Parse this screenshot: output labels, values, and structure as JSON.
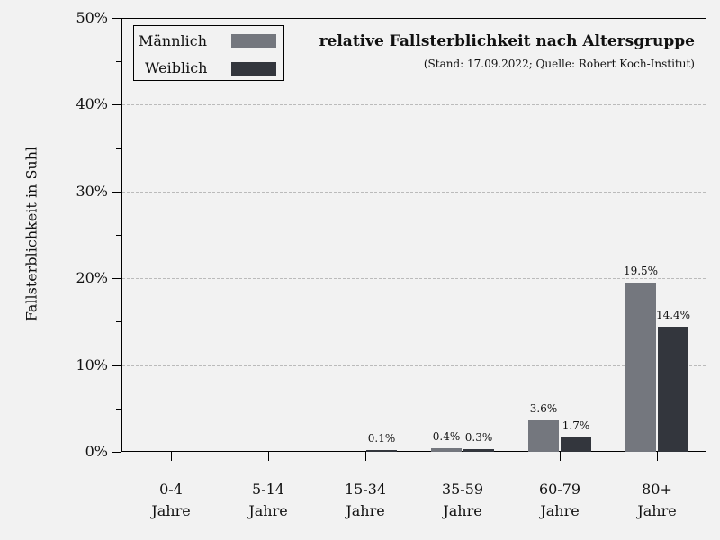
{
  "chart_data": {
    "type": "bar",
    "title": "relative Fallsterblichkeit nach Altersgruppe",
    "subtitle": "(Stand: 17.09.2022; Quelle: Robert Koch-Institut)",
    "xlabel": "",
    "ylabel": "Fallsterblichkeit in Suhl",
    "ylim": [
      0,
      50
    ],
    "yticks": [
      "0%",
      "10%",
      "20%",
      "30%",
      "40%",
      "50%"
    ],
    "grid": true,
    "legend_position": "top-left",
    "categories": [
      "0-4 Jahre",
      "5-14 Jahre",
      "15-34 Jahre",
      "35-59 Jahre",
      "60-79 Jahre",
      "80+ Jahre"
    ],
    "series": [
      {
        "name": "Männlich",
        "color": "#74777e",
        "values": [
          0,
          0,
          0,
          0.4,
          3.6,
          19.5
        ],
        "labels": [
          "",
          "",
          "",
          "0.4%",
          "3.6%",
          "19.5%"
        ]
      },
      {
        "name": "Weiblich",
        "color": "#33363d",
        "values": [
          0,
          0,
          0.1,
          0.3,
          1.7,
          14.4
        ],
        "labels": [
          "",
          "",
          "0.1%",
          "0.3%",
          "1.7%",
          "14.4%"
        ]
      }
    ]
  },
  "axis": {
    "y_ticks": [
      "50%",
      "40%",
      "30%",
      "20%",
      "10%",
      "0%"
    ],
    "x_labels": [
      {
        "line1": "0-4",
        "line2": "Jahre"
      },
      {
        "line1": "5-14",
        "line2": "Jahre"
      },
      {
        "line1": "15-34",
        "line2": "Jahre"
      },
      {
        "line1": "35-59",
        "line2": "Jahre"
      },
      {
        "line1": "60-79",
        "line2": "Jahre"
      },
      {
        "line1": "80+",
        "line2": "Jahre"
      }
    ]
  },
  "legend": {
    "male": "Männlich",
    "female": "Weiblich"
  }
}
